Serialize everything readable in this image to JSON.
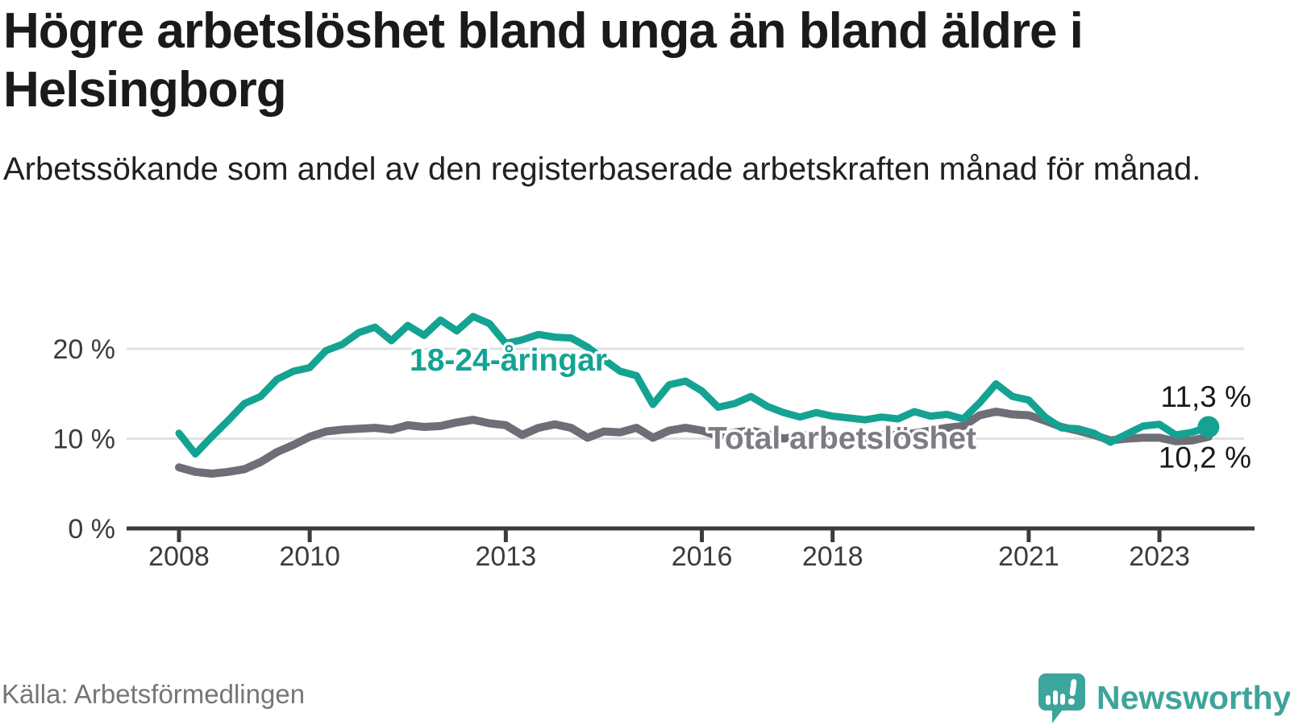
{
  "header": {
    "title": "Högre arbetslöshet bland unga än bland äldre i Helsingborg",
    "subtitle": "Arbetssökande som andel av den registerbaserade arbetskraften månad för månad."
  },
  "footer": {
    "source": "Källa: Arbetsförmedlingen",
    "logo_text": "Newsworthy",
    "logo_icon": "speech-bubble-bar-chart-icon"
  },
  "colors": {
    "teal_line": "#14A392",
    "gray_line": "#6E6E76",
    "gray_label": "#7C7C82",
    "axis": "#3B3B3B",
    "grid": "#E1E1E1",
    "logo_teal": "#3CA59C",
    "value_text": "#1A1A1A"
  },
  "chart_data": {
    "type": "line",
    "title": "Högre arbetslöshet bland unga än bland äldre i Helsingborg",
    "subtitle": "Arbetssökande som andel av den registerbaserade arbetskraften månad för månad.",
    "source": "Källa: Arbetsförmedlingen",
    "unit": "%",
    "x_start": 2008.0,
    "x_step": 0.25,
    "xlim": [
      2007.2,
      2024.3
    ],
    "ylim": [
      0,
      25
    ],
    "grid_pct": [
      10,
      20
    ],
    "legend_position": "inline-labels",
    "x_ticks": [
      {
        "v": 2008,
        "label": "2008"
      },
      {
        "v": 2010,
        "label": "2010"
      },
      {
        "v": 2013,
        "label": "2013"
      },
      {
        "v": 2016,
        "label": "2016"
      },
      {
        "v": 2018,
        "label": "2018"
      },
      {
        "v": 2021,
        "label": "2021"
      },
      {
        "v": 2023,
        "label": "2023"
      }
    ],
    "y_ticks": [
      {
        "v": 0,
        "label": "0 %"
      },
      {
        "v": 10,
        "label": "10 %"
      },
      {
        "v": 20,
        "label": "20 %"
      }
    ],
    "series": [
      {
        "name": "18-24-åringar",
        "color": "#14A392",
        "end_label": "11,3 %",
        "end_value": 11.3,
        "values": [
          10.6,
          8.3,
          10.2,
          12.0,
          13.9,
          14.7,
          16.6,
          17.5,
          17.9,
          19.8,
          20.5,
          21.8,
          22.4,
          20.9,
          22.6,
          21.5,
          23.2,
          22.0,
          23.6,
          22.8,
          20.6,
          21.0,
          21.6,
          21.3,
          21.2,
          20.2,
          18.8,
          17.5,
          17.0,
          13.8,
          16.0,
          16.4,
          15.3,
          13.5,
          13.9,
          14.7,
          13.6,
          12.9,
          12.4,
          12.9,
          12.5,
          12.3,
          12.1,
          12.4,
          12.2,
          13.0,
          12.5,
          12.7,
          12.2,
          14.0,
          16.1,
          14.7,
          14.3,
          12.4,
          11.2,
          11.1,
          10.6,
          9.6,
          10.5,
          11.4,
          11.6,
          10.4,
          10.7,
          11.3
        ]
      },
      {
        "name": "Total arbetslöshet",
        "color": "#6E6E76",
        "end_label": "10,2 %",
        "end_value": 10.2,
        "values": [
          6.8,
          6.3,
          6.1,
          6.3,
          6.6,
          7.4,
          8.5,
          9.3,
          10.2,
          10.8,
          11.0,
          11.1,
          11.2,
          11.0,
          11.5,
          11.3,
          11.4,
          11.8,
          12.1,
          11.7,
          11.5,
          10.4,
          11.2,
          11.6,
          11.2,
          10.1,
          10.8,
          10.7,
          11.2,
          10.1,
          10.9,
          11.2,
          10.9,
          10.3,
          10.7,
          10.9,
          10.5,
          10.0,
          10.3,
          10.5,
          10.3,
          9.9,
          10.1,
          10.4,
          10.4,
          10.6,
          10.9,
          11.2,
          11.4,
          12.6,
          13.0,
          12.7,
          12.6,
          12.0,
          11.3,
          10.9,
          10.4,
          9.8,
          10.0,
          10.1,
          10.1,
          9.7,
          9.8,
          10.2
        ]
      }
    ]
  }
}
